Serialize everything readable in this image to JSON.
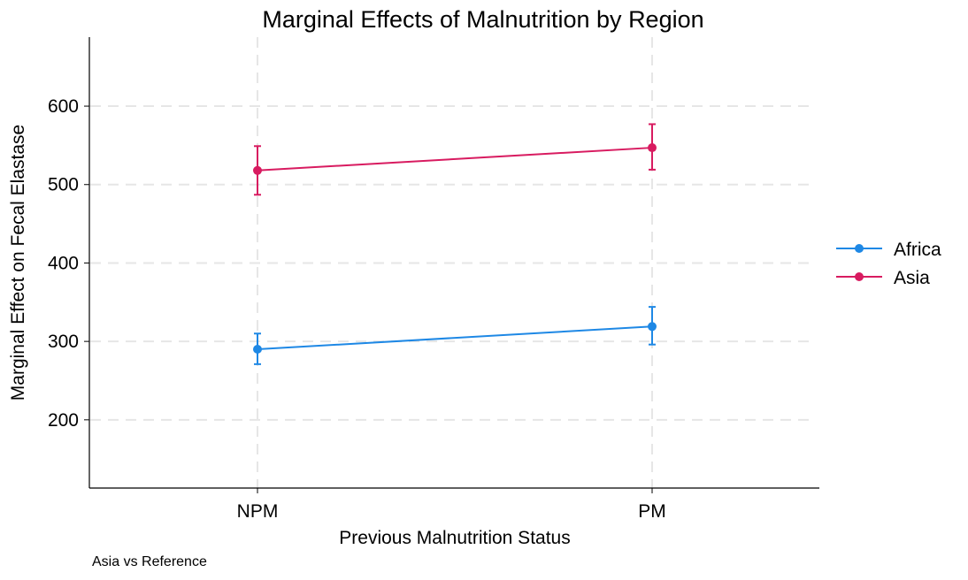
{
  "chart_data": {
    "type": "line",
    "title": "Marginal Effects of Malnutrition by Region",
    "xlabel": "Previous Malnutrition Status",
    "ylabel": "Marginal Effect on Fecal Elastase",
    "categories": [
      "NPM",
      "PM"
    ],
    "ylim": [
      113,
      688
    ],
    "yticks": [
      200,
      300,
      400,
      500,
      600
    ],
    "grid": true,
    "legend_position": "right",
    "series": [
      {
        "name": "Africa",
        "color": "#1e88e5",
        "values": [
          290,
          319
        ],
        "lower": [
          271,
          296
        ],
        "upper": [
          310,
          344
        ]
      },
      {
        "name": "Asia",
        "color": "#d81b60",
        "values": [
          518,
          547
        ],
        "lower": [
          487,
          519
        ],
        "upper": [
          549,
          577
        ]
      }
    ],
    "note": "Asia vs Reference"
  }
}
